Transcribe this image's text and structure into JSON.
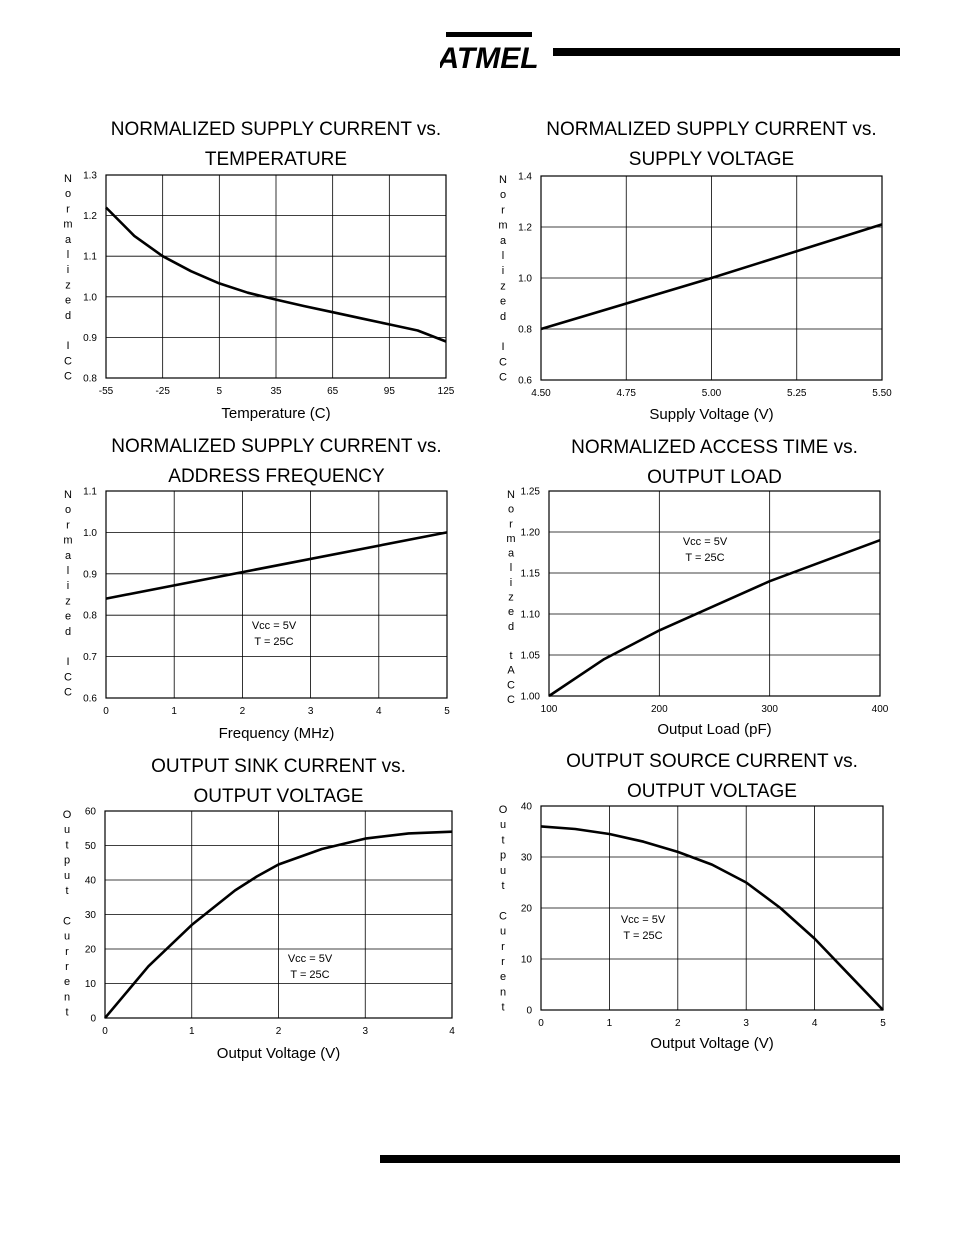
{
  "logo_text": "ATMEL",
  "chart_data": [
    {
      "type": "line",
      "title": [
        "NORMALIZED SUPPLY CURRENT vs.",
        "TEMPERATURE"
      ],
      "xlabel": "Temperature (C)",
      "ylabel": "Normalized ICC",
      "xlim": [
        -55,
        125
      ],
      "ylim": [
        0.8,
        1.3
      ],
      "x_ticks": [
        -55,
        -25,
        5,
        35,
        65,
        95,
        125
      ],
      "x_tick_labels": [
        "-55",
        "-25",
        "5",
        "35",
        "65",
        "95",
        "125"
      ],
      "y_ticks": [
        0.8,
        0.9,
        1.0,
        1.1,
        1.2,
        1.3
      ],
      "y_tick_labels": [
        "0.8",
        "0.9",
        "1.0",
        "1.1",
        "1.2",
        "1.3"
      ],
      "grid": true,
      "annotation": [],
      "x": [
        -55,
        -40,
        -25,
        -10,
        5,
        20,
        35,
        50,
        65,
        80,
        95,
        110,
        125
      ],
      "y": [
        1.22,
        1.15,
        1.1,
        1.063,
        1.033,
        1.01,
        0.993,
        0.977,
        0.962,
        0.947,
        0.932,
        0.917,
        0.89
      ]
    },
    {
      "type": "line",
      "title": [
        "NORMALIZED SUPPLY CURRENT vs.",
        "SUPPLY VOLTAGE"
      ],
      "xlabel": "Supply Voltage (V)",
      "ylabel": "Normalized ICC",
      "xlim": [
        4.5,
        5.5
      ],
      "ylim": [
        0.6,
        1.4
      ],
      "x_ticks": [
        4.5,
        4.75,
        5.0,
        5.25,
        5.5
      ],
      "x_tick_labels": [
        "4.50",
        "4.75",
        "5.00",
        "5.25",
        "5.50"
      ],
      "y_ticks": [
        0.6,
        0.8,
        1.0,
        1.2,
        1.4
      ],
      "y_tick_labels": [
        "0.6",
        "0.8",
        "1.0",
        "1.2",
        "1.4"
      ],
      "grid": true,
      "annotation": [],
      "x": [
        4.5,
        5.0,
        5.5
      ],
      "y": [
        0.8,
        1.0,
        1.21
      ]
    },
    {
      "type": "line",
      "title": [
        "NORMALIZED SUPPLY CURRENT vs.",
        "ADDRESS FREQUENCY"
      ],
      "xlabel": "Frequency (MHz)",
      "ylabel": "Normalized ICC",
      "xlim": [
        0,
        5
      ],
      "ylim": [
        0.6,
        1.1
      ],
      "x_ticks": [
        0,
        1,
        2,
        3,
        4,
        5
      ],
      "x_tick_labels": [
        "0",
        "1",
        "2",
        "3",
        "4",
        "5"
      ],
      "y_ticks": [
        0.6,
        0.7,
        0.8,
        0.9,
        1.0,
        1.1
      ],
      "y_tick_labels": [
        "0.6",
        "0.7",
        "0.8",
        "0.9",
        "1.0",
        "1.1"
      ],
      "grid": true,
      "annotation": [
        "Vcc = 5V",
        "T = 25C"
      ],
      "x": [
        0,
        5
      ],
      "y": [
        0.84,
        1.0
      ]
    },
    {
      "type": "line",
      "title": [
        "NORMALIZED ACCESS TIME vs.",
        "OUTPUT LOAD"
      ],
      "xlabel": "Output Load (pF)",
      "ylabel": "Normalized tACC",
      "xlim": [
        100,
        400
      ],
      "ylim": [
        1.0,
        1.25
      ],
      "x_ticks": [
        100,
        200,
        300,
        400
      ],
      "x_tick_labels": [
        "100",
        "200",
        "300",
        "400"
      ],
      "y_ticks": [
        1.0,
        1.05,
        1.1,
        1.15,
        1.2,
        1.25
      ],
      "y_tick_labels": [
        "1.00",
        "1.05",
        "1.10",
        "1.15",
        "1.20",
        "1.25"
      ],
      "grid": true,
      "annotation": [
        "Vcc = 5V",
        "T = 25C"
      ],
      "x": [
        100,
        150,
        200,
        250,
        300,
        350,
        400
      ],
      "y": [
        1.0,
        1.045,
        1.08,
        1.11,
        1.14,
        1.165,
        1.19
      ]
    },
    {
      "type": "line",
      "title": [
        "OUTPUT SINK CURRENT vs.",
        "OUTPUT VOLTAGE"
      ],
      "xlabel": "Output Voltage (V)",
      "ylabel": "Output Current",
      "xlim": [
        0,
        4
      ],
      "ylim": [
        0,
        60
      ],
      "x_ticks": [
        0,
        1,
        2,
        3,
        4
      ],
      "x_tick_labels": [
        "0",
        "1",
        "2",
        "3",
        "4"
      ],
      "y_ticks": [
        0,
        10,
        20,
        30,
        40,
        50,
        60
      ],
      "y_tick_labels": [
        "0",
        "10",
        "20",
        "30",
        "40",
        "50",
        "60"
      ],
      "grid": true,
      "annotation": [
        "Vcc = 5V",
        "T = 25C"
      ],
      "x": [
        0,
        0.5,
        1.0,
        1.5,
        1.75,
        2.0,
        2.5,
        3.0,
        3.5,
        4.0
      ],
      "y": [
        0,
        15,
        27,
        37,
        41,
        44.5,
        49,
        52,
        53.5,
        54
      ]
    },
    {
      "type": "line",
      "title": [
        "OUTPUT SOURCE CURRENT vs.",
        "OUTPUT VOLTAGE"
      ],
      "xlabel": "Output Voltage (V)",
      "ylabel": "Output Current",
      "xlim": [
        0,
        5
      ],
      "ylim": [
        0,
        40
      ],
      "x_ticks": [
        0,
        1,
        2,
        3,
        4,
        5
      ],
      "x_tick_labels": [
        "0",
        "1",
        "2",
        "3",
        "4",
        "5"
      ],
      "y_ticks": [
        0,
        10,
        20,
        30,
        40
      ],
      "y_tick_labels": [
        "0",
        "10",
        "20",
        "30",
        "40"
      ],
      "grid": true,
      "annotation": [
        "Vcc = 5V",
        "T = 25C"
      ],
      "x": [
        0,
        0.5,
        1.0,
        1.5,
        2.0,
        2.5,
        3.0,
        3.5,
        4.0,
        4.5,
        5.0
      ],
      "y": [
        36,
        35.5,
        34.5,
        33,
        31,
        28.5,
        25,
        20,
        14,
        7,
        0
      ]
    }
  ]
}
